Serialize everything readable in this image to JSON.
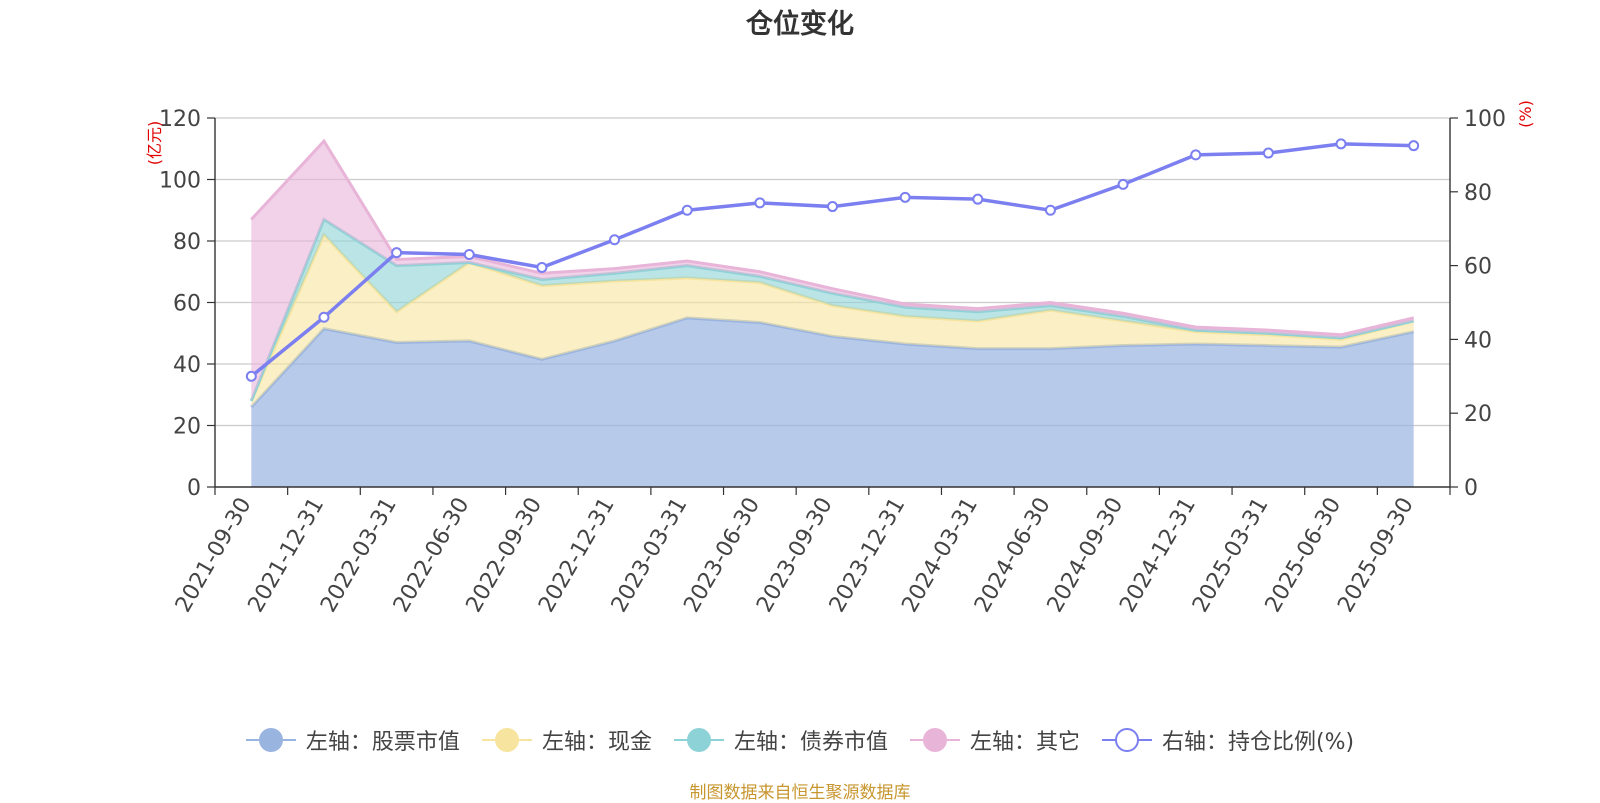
{
  "chart_data": {
    "type": "area",
    "title": "仓位变化",
    "source_note": "制图数据来自恒生聚源数据库",
    "y_left_label": "(亿元)",
    "y_right_label": "(%)",
    "y_left_ticks": [
      "0",
      "20",
      "40",
      "60",
      "80",
      "100",
      "120"
    ],
    "y_right_ticks": [
      "0",
      "20",
      "40",
      "60",
      "80",
      "100"
    ],
    "y_left_range": [
      0,
      120
    ],
    "y_right_range": [
      0,
      100
    ],
    "categories": [
      "2021-09-30",
      "2021-12-31",
      "2022-03-31",
      "2022-06-30",
      "2022-09-30",
      "2022-12-31",
      "2023-03-31",
      "2023-06-30",
      "2023-09-30",
      "2023-12-31",
      "2024-03-31",
      "2024-06-30",
      "2024-09-30",
      "2024-12-31",
      "2025-03-31",
      "2025-06-30",
      "2025-09-30"
    ],
    "stacked_series": [
      {
        "name": "左轴：股票市值",
        "color": "#9ab4e0",
        "values": [
          26,
          51.5,
          47,
          47.5,
          41.5,
          47.5,
          55,
          53.5,
          49,
          46.5,
          45,
          45,
          46,
          46.5,
          46,
          45.5,
          50.5
        ]
      },
      {
        "name": "左轴：现金",
        "color": "#f7e49e",
        "values": [
          2,
          30.5,
          10,
          25.5,
          24,
          19.5,
          13,
          13,
          10,
          9,
          9,
          12.5,
          8,
          4,
          3.5,
          2.5,
          3.5
        ]
      },
      {
        "name": "左轴：债券市值",
        "color": "#8dd2d6",
        "values": [
          0,
          5,
          15,
          0,
          2,
          2.5,
          4,
          2,
          4,
          3,
          3,
          1.5,
          1.5,
          0.5,
          0.5,
          0.5,
          0
        ]
      },
      {
        "name": "左轴：其它",
        "color": "#e8b4d8",
        "values": [
          59,
          25.5,
          2,
          2,
          2,
          1.5,
          1.5,
          1.5,
          1.5,
          1,
          1,
          1,
          1,
          1,
          1,
          1,
          1
        ]
      }
    ],
    "line_series": {
      "name": "右轴：持仓比例(%)",
      "color": "#7b7ff0",
      "values": [
        30,
        46,
        63.5,
        63,
        59.5,
        67,
        75,
        77,
        76,
        78.5,
        78,
        75,
        82,
        90,
        90.5,
        93,
        92.5
      ]
    }
  }
}
